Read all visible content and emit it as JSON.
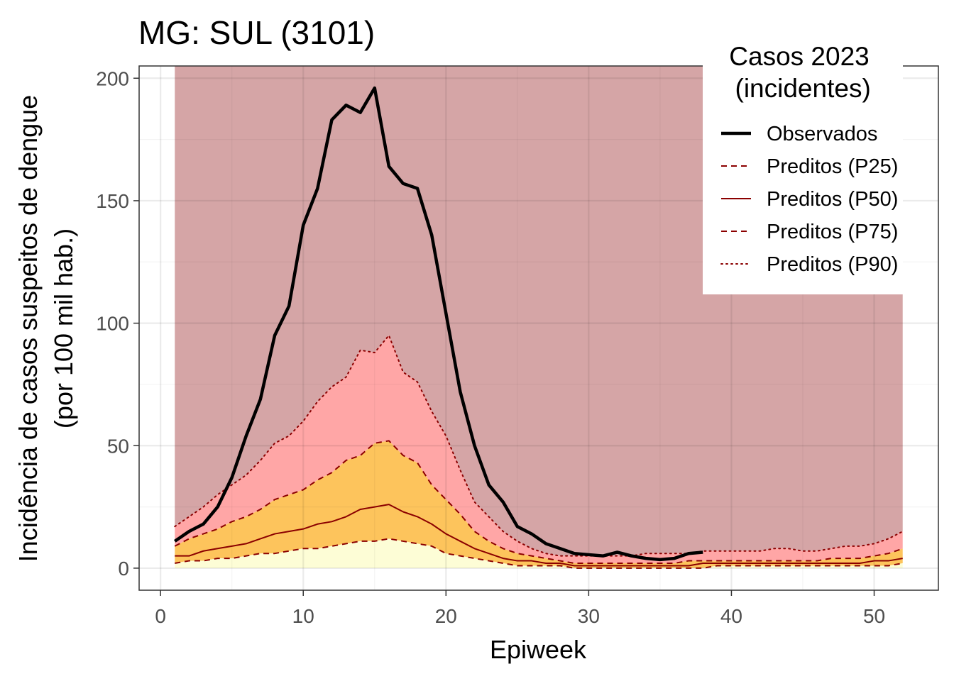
{
  "chart_data": {
    "type": "line",
    "title": "MG: SUL (3101)",
    "xlabel": "Epiweek",
    "ylabel_line1": "Incidência de casos suspeitos de dengue",
    "ylabel_line2": "(por 100 mil hab.)",
    "xlim": [
      -1.5,
      54.5
    ],
    "ylim": [
      -9,
      205
    ],
    "x_ticks": [
      0,
      10,
      20,
      30,
      40,
      50
    ],
    "y_ticks": [
      0,
      50,
      100,
      150,
      200
    ],
    "grid": true,
    "legend": {
      "title_line1": "Casos 2023",
      "title_line2": " (incidentes)",
      "placement": "top-right",
      "entries": [
        {
          "label": "Observados",
          "style": "solid-thick",
          "color": "#000000"
        },
        {
          "label": "Preditos (P25)",
          "style": "dashed",
          "color": "#8b0000"
        },
        {
          "label": "Preditos (P50)",
          "style": "solid",
          "color": "#8b0000"
        },
        {
          "label": "Preditos (P75)",
          "style": "dashed",
          "color": "#8b0000"
        },
        {
          "label": "Preditos (P90)",
          "style": "dotted",
          "color": "#8b0000"
        }
      ]
    },
    "colors": {
      "above_p90": "#d5a5a6",
      "p75_p90": "#ffa6a6",
      "p25_p75": "#fdc45c",
      "below_p25": "#fdfdd6",
      "predicted_line": "#8b0000",
      "observed_line": "#000000"
    },
    "band_top": 205,
    "x": [
      1,
      2,
      3,
      4,
      5,
      6,
      7,
      8,
      9,
      10,
      11,
      12,
      13,
      14,
      15,
      16,
      17,
      18,
      19,
      20,
      21,
      22,
      23,
      24,
      25,
      26,
      27,
      28,
      29,
      30,
      31,
      32,
      33,
      34,
      35,
      36,
      37,
      38,
      39,
      40,
      41,
      42,
      43,
      44,
      45,
      46,
      47,
      48,
      49,
      50,
      51,
      52
    ],
    "series": [
      {
        "name": "Preditos (P25)",
        "values": [
          2,
          3,
          3,
          4,
          4,
          5,
          6,
          6,
          7,
          8,
          8,
          9,
          10,
          11,
          11,
          12,
          11,
          10,
          9,
          6,
          5,
          4,
          3,
          2,
          1,
          1,
          1,
          1,
          0,
          0,
          0,
          0,
          0,
          0,
          0,
          0,
          0,
          0,
          1,
          1,
          1,
          1,
          1,
          1,
          1,
          1,
          1,
          1,
          1,
          1,
          1,
          2
        ]
      },
      {
        "name": "Preditos (P50)",
        "values": [
          5,
          5,
          7,
          8,
          9,
          10,
          12,
          14,
          15,
          16,
          18,
          19,
          21,
          24,
          25,
          26,
          23,
          21,
          18,
          14,
          11,
          8,
          6,
          4,
          3,
          3,
          2,
          2,
          1,
          1,
          1,
          1,
          1,
          1,
          1,
          1,
          1,
          2,
          2,
          2,
          2,
          2,
          2,
          2,
          2,
          2,
          2,
          2,
          2,
          3,
          3,
          4
        ]
      },
      {
        "name": "Preditos (P75)",
        "values": [
          9,
          12,
          14,
          16,
          19,
          21,
          24,
          28,
          30,
          32,
          36,
          39,
          44,
          46,
          51,
          52,
          46,
          43,
          34,
          28,
          22,
          15,
          11,
          8,
          6,
          5,
          4,
          3,
          2,
          2,
          2,
          2,
          2,
          2,
          2,
          2,
          3,
          3,
          3,
          3,
          3,
          3,
          3,
          3,
          3,
          3,
          4,
          4,
          4,
          5,
          6,
          8
        ]
      },
      {
        "name": "Preditos (P90)",
        "values": [
          17,
          21,
          25,
          30,
          34,
          38,
          44,
          51,
          54,
          60,
          68,
          74,
          78,
          89,
          88,
          95,
          80,
          76,
          64,
          54,
          40,
          27,
          21,
          15,
          11,
          8,
          6,
          5,
          5,
          5,
          5,
          5,
          5,
          6,
          6,
          6,
          6,
          7,
          7,
          7,
          7,
          7,
          8,
          8,
          7,
          7,
          8,
          9,
          9,
          10,
          12,
          15
        ]
      },
      {
        "name": "Observados",
        "x": [
          1,
          2,
          3,
          4,
          5,
          6,
          7,
          8,
          9,
          10,
          11,
          12,
          13,
          14,
          15,
          16,
          17,
          18,
          19,
          20,
          21,
          22,
          23,
          24,
          25,
          26,
          27,
          28,
          29,
          30,
          31,
          32,
          33,
          34,
          35,
          36,
          37,
          38
        ],
        "values": [
          11,
          15,
          18,
          25,
          37,
          54,
          69,
          95,
          107,
          140,
          155,
          183,
          189,
          186,
          196,
          164,
          157,
          155,
          136,
          104,
          72,
          50,
          34,
          27,
          17,
          14,
          10,
          8,
          6,
          5.5,
          5,
          6.5,
          5,
          4,
          3.5,
          4,
          6,
          6.5
        ]
      }
    ]
  }
}
